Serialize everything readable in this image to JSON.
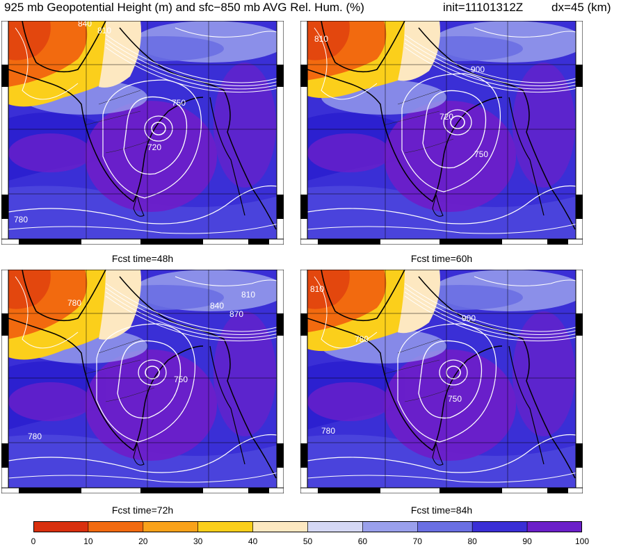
{
  "title": {
    "left": "925 mb Geopotential Height (m) and sfc−850 mb AVG Rel. Hum. (%)",
    "init": "init=11101312Z",
    "dx": "dx=45 (km)"
  },
  "panels": [
    {
      "caption": "Fcst time=48h",
      "contour_labels": [
        "840",
        "810",
        "750",
        "720",
        "780"
      ]
    },
    {
      "caption": "Fcst time=60h",
      "contour_labels": [
        "810",
        "900",
        "720",
        "750"
      ]
    },
    {
      "caption": "Fcst time=72h",
      "contour_labels": [
        "780",
        "840",
        "870",
        "810",
        "750",
        "780"
      ]
    },
    {
      "caption": "Fcst time=84h",
      "contour_labels": [
        "810",
        "900",
        "780",
        "750",
        "780"
      ]
    }
  ],
  "colorbar": {
    "ticks": [
      "0",
      "10",
      "20",
      "30",
      "40",
      "50",
      "60",
      "70",
      "80",
      "90",
      "100"
    ],
    "colors": [
      "#d9300e",
      "#f26a0f",
      "#f9a21a",
      "#fbcf1b",
      "#fde8c1",
      "#d5d8f5",
      "#9aa0ec",
      "#6a6fe3",
      "#3a2fd6",
      "#6b1fc9"
    ]
  }
}
